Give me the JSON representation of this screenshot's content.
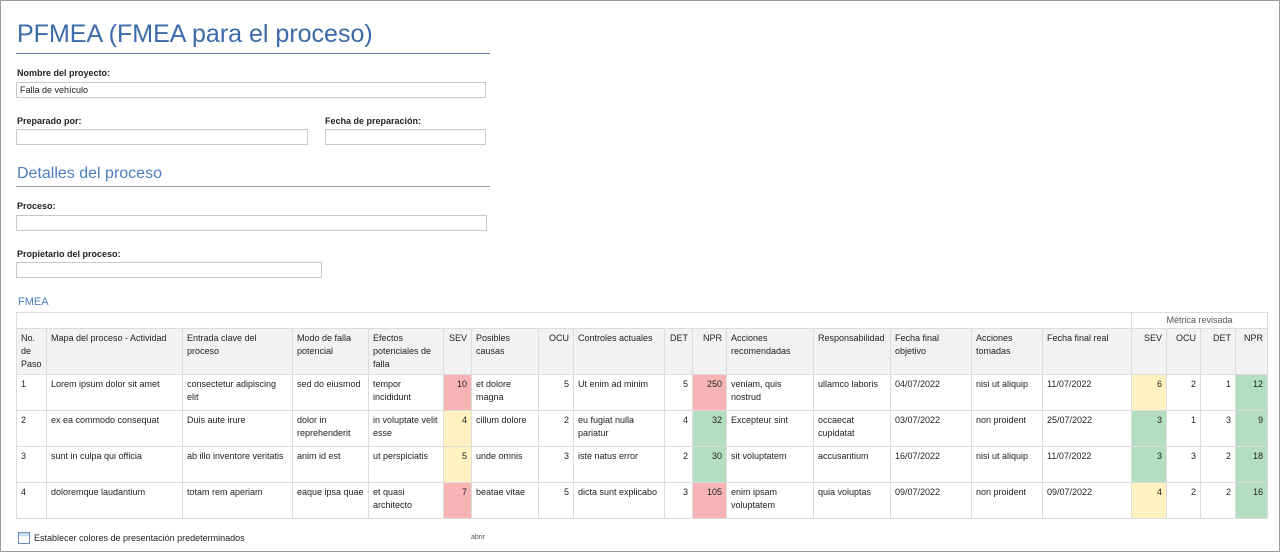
{
  "title": "PFMEA (FMEA para el proceso)",
  "project": {
    "label": "Nombre del proyecto:",
    "value": "Falla de vehículo"
  },
  "prepared_by": {
    "label": "Preparado por:",
    "value": ""
  },
  "prep_date": {
    "label": "Fecha de preparación:",
    "value": ""
  },
  "process_section": "Detalles del proceso",
  "process": {
    "label": "Proceso:",
    "value": ""
  },
  "owner": {
    "label": "Propietario del proceso:",
    "value": ""
  },
  "fmea_heading": "FMEA",
  "revised_label": "Métrica revisada",
  "headers": [
    "No. de Paso",
    "Mapa del proceso - Actividad",
    "Entrada clave del proceso",
    "Modo de falla potencial",
    "Efectos potenciales de falla",
    "SEV",
    "Posibles causas",
    "OCU",
    "Controles actuales",
    "DET",
    "NPR",
    "Acciones recomendadas",
    "Responsabilidad",
    "Fecha final objetivo",
    "Acciones tomadas",
    "Fecha final real",
    "SEV",
    "OCU",
    "DET",
    "NPR"
  ],
  "colors": {
    "red": "#f8b4b4",
    "yellow": "#fff2c0",
    "green": "#b3dfc0"
  },
  "rows": [
    [
      "1",
      "Lorem ipsum dolor sit amet",
      "consectetur adipiscing elit",
      "sed do eiusmod",
      "tempor incididunt",
      "10",
      "et dolore magna",
      "5",
      "Ut enim ad minim",
      "5",
      "250",
      "veniam, quis nostrud",
      "ullamco laboris",
      "04/07/2022",
      "nisi ut aliquip",
      "11/07/2022",
      "6",
      "2",
      "1",
      "12"
    ],
    [
      "2",
      "ex ea commodo consequat",
      "Duis aute irure",
      "dolor in reprehenderit",
      "in voluptate velit esse",
      "4",
      "cillum dolore",
      "2",
      "eu fugiat nulla pariatur",
      "4",
      "32",
      "Excepteur sint",
      "occaecat cupidatat",
      "03/07/2022",
      "non proident",
      "25/07/2022",
      "3",
      "1",
      "3",
      "9"
    ],
    [
      "3",
      "sunt in culpa qui officia",
      "ab illo inventore veritatis",
      "anim id est",
      "ut perspiciatis",
      "5",
      "unde omnis",
      "3",
      "iste natus error",
      "2",
      "30",
      "sit voluptatem",
      "accusantium",
      "16/07/2022",
      "nisi ut aliquip",
      "11/07/2022",
      "3",
      "3",
      "2",
      "18"
    ],
    [
      "4",
      "doloremque laudantium",
      "totam rem aperiam",
      "eaque ipsa quae",
      "et quasi architecto",
      "7",
      "beatae vitae",
      "5",
      "dicta sunt explicabo",
      "3",
      "105",
      "enim ipsam voluptatem",
      "quia voluptas",
      "09/07/2022",
      "non proident",
      "09/07/2022",
      "4",
      "2",
      "2",
      "16"
    ]
  ],
  "cell_colors": [
    {
      "5": "red",
      "10": "red",
      "16": "yellow",
      "19": "green"
    },
    {
      "5": "yellow",
      "10": "green",
      "16": "green",
      "19": "green"
    },
    {
      "5": "yellow",
      "10": "green",
      "16": "green",
      "19": "green"
    },
    {
      "5": "red",
      "10": "red",
      "16": "yellow",
      "19": "green"
    }
  ],
  "footer": {
    "set_colors": "Establecer colores de presentación predeterminados",
    "open": "abrir",
    "icon": "table-edit-icon"
  }
}
